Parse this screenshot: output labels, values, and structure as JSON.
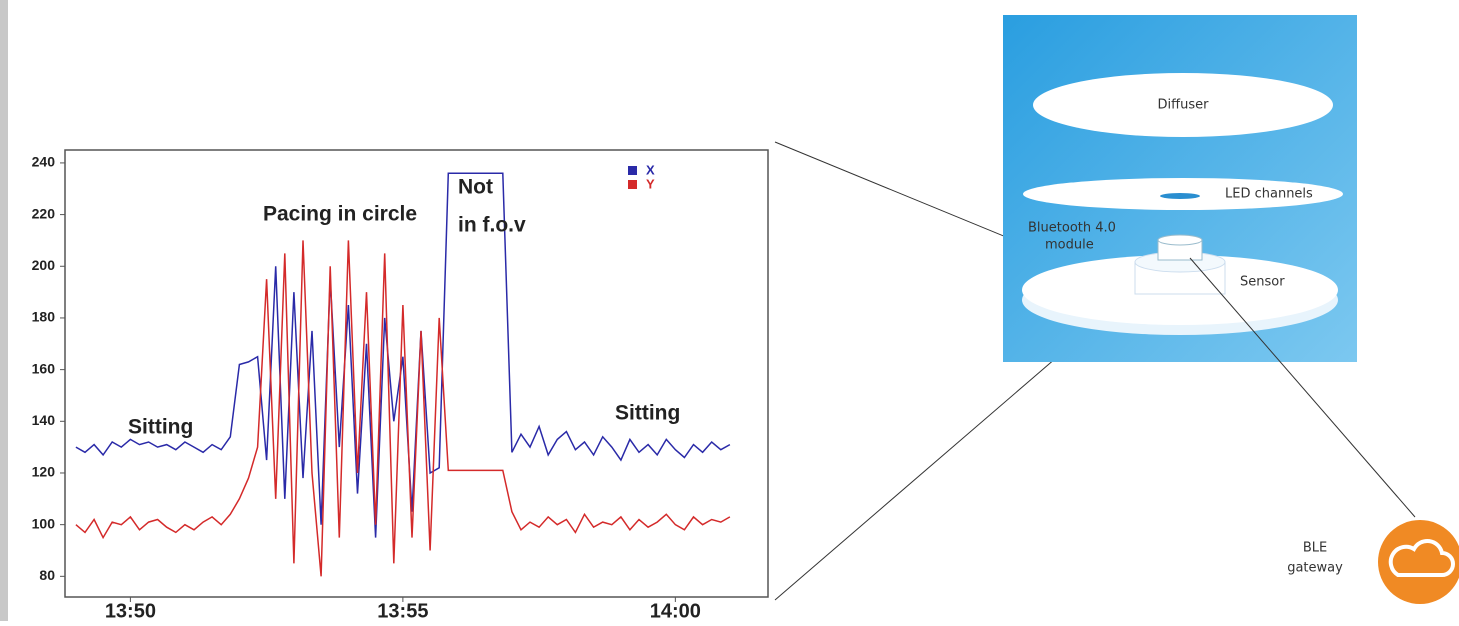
{
  "chart_data": {
    "type": "line",
    "x": [
      "13:49:00",
      "13:49:10",
      "13:49:20",
      "13:49:30",
      "13:49:40",
      "13:49:50",
      "13:50:00",
      "13:50:10",
      "13:50:20",
      "13:50:30",
      "13:50:40",
      "13:50:50",
      "13:51:00",
      "13:51:10",
      "13:51:20",
      "13:51:30",
      "13:51:40",
      "13:51:50",
      "13:52:00",
      "13:52:10",
      "13:52:20",
      "13:52:30",
      "13:52:40",
      "13:52:50",
      "13:53:00",
      "13:53:10",
      "13:53:20",
      "13:53:30",
      "13:53:40",
      "13:53:50",
      "13:54:00",
      "13:54:10",
      "13:54:20",
      "13:54:30",
      "13:54:40",
      "13:54:50",
      "13:55:00",
      "13:55:10",
      "13:55:20",
      "13:55:30",
      "13:55:40",
      "13:55:50",
      "13:56:00",
      "13:56:10",
      "13:56:20",
      "13:56:30",
      "13:56:40",
      "13:56:50",
      "13:57:00",
      "13:57:10",
      "13:57:20",
      "13:57:30",
      "13:57:40",
      "13:57:50",
      "13:58:00",
      "13:58:10",
      "13:58:20",
      "13:58:30",
      "13:58:40",
      "13:58:50",
      "13:59:00",
      "13:59:10",
      "13:59:20",
      "13:59:30",
      "13:59:40",
      "13:59:50",
      "14:00:00",
      "14:00:10",
      "14:00:20",
      "14:00:30",
      "14:00:40",
      "14:00:50",
      "14:01:00"
    ],
    "series": [
      {
        "name": "X",
        "color": "#2a2aa8",
        "values": [
          130,
          128,
          131,
          127,
          132,
          130,
          133,
          131,
          132,
          130,
          131,
          129,
          132,
          130,
          128,
          131,
          129,
          134,
          162,
          163,
          165,
          125,
          200,
          110,
          190,
          118,
          175,
          100,
          195,
          130,
          185,
          112,
          170,
          95,
          180,
          140,
          165,
          105,
          175,
          120,
          122,
          236,
          236,
          236,
          236,
          236,
          236,
          236,
          128,
          135,
          130,
          138,
          127,
          133,
          136,
          129,
          132,
          127,
          134,
          130,
          125,
          133,
          128,
          131,
          127,
          133,
          129,
          126,
          131,
          128,
          132,
          129,
          131
        ]
      },
      {
        "name": "Y",
        "color": "#d42a2a",
        "values": [
          100,
          97,
          102,
          95,
          101,
          100,
          103,
          98,
          101,
          102,
          99,
          97,
          100,
          98,
          101,
          103,
          100,
          104,
          110,
          118,
          130,
          195,
          110,
          205,
          85,
          210,
          120,
          80,
          200,
          95,
          210,
          120,
          190,
          100,
          205,
          85,
          185,
          95,
          175,
          90,
          180,
          121,
          121,
          121,
          121,
          121,
          121,
          121,
          105,
          98,
          101,
          99,
          103,
          100,
          102,
          97,
          104,
          99,
          101,
          100,
          103,
          98,
          102,
          99,
          101,
          104,
          100,
          98,
          103,
          100,
          102,
          101,
          103
        ]
      }
    ],
    "xlim": [
      "13:48:48",
      "14:01:42"
    ],
    "xticks": [
      "13:50",
      "13:55",
      "14:00"
    ],
    "ylim": [
      72,
      245
    ],
    "yticks": [
      80,
      100,
      120,
      140,
      160,
      180,
      200,
      220,
      240
    ],
    "annotations": [
      "Pacing in circle",
      "Not",
      "in f.o.v",
      "Sitting",
      "Sitting"
    ],
    "legend": "upper right"
  },
  "diagram": {
    "labels": [
      "Diffuser",
      "LED channels",
      "Bluetooth 4.0",
      "module",
      "Sensor",
      "BLE",
      "gateway"
    ]
  }
}
